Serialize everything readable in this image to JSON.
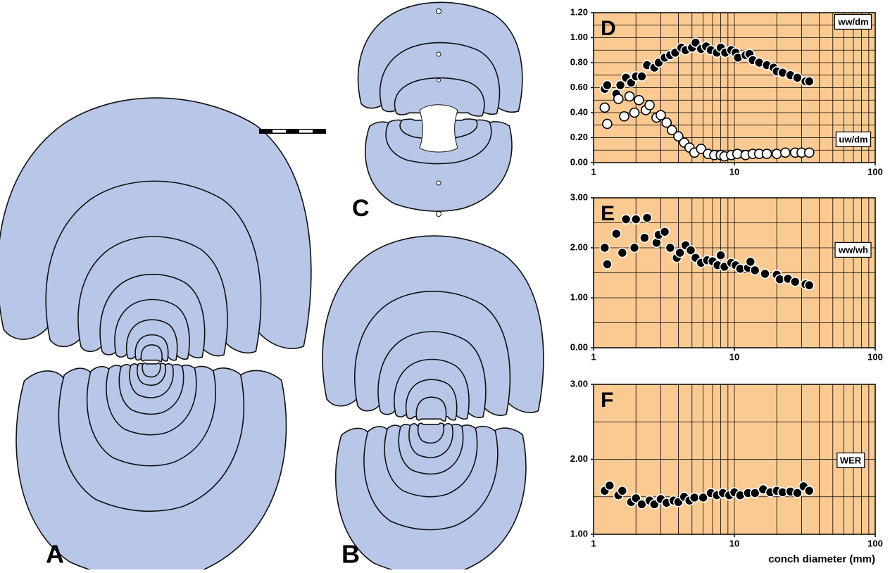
{
  "figure_labels": [
    "A",
    "B",
    "C"
  ],
  "chart_data": [
    {
      "type": "scatter",
      "panel": "D",
      "log_x": true,
      "xlim": [
        1,
        100
      ],
      "xticks": [
        1,
        10,
        100
      ],
      "ylim": [
        0,
        1.2
      ],
      "yticks": [
        {
          "value": 0,
          "label": "0.00"
        },
        {
          "value": 0.2,
          "label": "0.20"
        },
        {
          "value": 0.4,
          "label": "0.40"
        },
        {
          "value": 0.6,
          "label": "0.60"
        },
        {
          "value": 0.8,
          "label": "0.80"
        },
        {
          "value": 1,
          "label": "1.00"
        },
        {
          "value": 1.2,
          "label": "1.20"
        }
      ],
      "xgrid": [
        1,
        2,
        3,
        4,
        5,
        6,
        7,
        8,
        9,
        10,
        20,
        30,
        40,
        50,
        60,
        70,
        80,
        90,
        100
      ],
      "ygrid": [
        0,
        0.1,
        0.2,
        0.3,
        0.4,
        0.5,
        0.6,
        0.7,
        0.8,
        0.9,
        1,
        1.1,
        1.2
      ],
      "background": "#fbca93",
      "series": [
        {
          "name": "ww/dm",
          "color": "#000000",
          "x": [
            1.2,
            1.25,
            1.45,
            1.55,
            1.7,
            1.85,
            2.0,
            2.2,
            2.4,
            2.7,
            2.9,
            3.2,
            3.5,
            3.8,
            4.2,
            4.5,
            5.0,
            5.3,
            5.8,
            6.3,
            6.8,
            7.5,
            8.0,
            8.6,
            9.5,
            10.2,
            10.6,
            12,
            12.8,
            13.5,
            15,
            17,
            19,
            20,
            22,
            25,
            28,
            32,
            34
          ],
          "values": [
            0.59,
            0.62,
            0.55,
            0.62,
            0.68,
            0.64,
            0.69,
            0.69,
            0.78,
            0.76,
            0.8,
            0.84,
            0.86,
            0.88,
            0.92,
            0.9,
            0.92,
            0.96,
            0.91,
            0.93,
            0.9,
            0.88,
            0.92,
            0.88,
            0.9,
            0.88,
            0.84,
            0.86,
            0.87,
            0.82,
            0.8,
            0.78,
            0.76,
            0.73,
            0.72,
            0.7,
            0.68,
            0.65,
            0.65
          ]
        },
        {
          "name": "uw/dm",
          "color": "#ffffff",
          "x": [
            1.2,
            1.25,
            1.5,
            1.65,
            1.8,
            1.95,
            2.1,
            2.35,
            2.5,
            2.8,
            3.0,
            3.3,
            3.6,
            4.0,
            4.4,
            4.8,
            5.2,
            5.8,
            6.5,
            7.2,
            8.0,
            8.5,
            9.5,
            10.5,
            12,
            13.5,
            15,
            17,
            20,
            23,
            27,
            30,
            34
          ],
          "values": [
            0.44,
            0.31,
            0.51,
            0.37,
            0.53,
            0.4,
            0.5,
            0.42,
            0.46,
            0.36,
            0.38,
            0.32,
            0.26,
            0.21,
            0.16,
            0.12,
            0.08,
            0.11,
            0.07,
            0.06,
            0.06,
            0.05,
            0.06,
            0.07,
            0.06,
            0.07,
            0.07,
            0.07,
            0.07,
            0.08,
            0.08,
            0.08,
            0.08
          ]
        }
      ]
    },
    {
      "type": "scatter",
      "panel": "E",
      "log_x": true,
      "xlim": [
        1,
        100
      ],
      "xticks": [
        1,
        10,
        100
      ],
      "ylim": [
        0,
        3
      ],
      "yticks": [
        {
          "value": 0,
          "label": "0.00"
        },
        {
          "value": 1,
          "label": "1.00"
        },
        {
          "value": 2,
          "label": "2.00"
        },
        {
          "value": 3,
          "label": "3.00"
        }
      ],
      "xgrid": [
        1,
        2,
        3,
        4,
        5,
        6,
        7,
        8,
        9,
        10,
        20,
        30,
        40,
        50,
        60,
        70,
        80,
        90,
        100
      ],
      "ygrid": [
        0,
        0.5,
        1,
        1.5,
        2,
        2.5,
        3
      ],
      "background": "#fbca93",
      "series": [
        {
          "name": "ww/wh",
          "color": "#000000",
          "x": [
            1.2,
            1.25,
            1.45,
            1.6,
            1.7,
            1.95,
            2.0,
            2.3,
            2.4,
            2.8,
            2.9,
            3.2,
            3.5,
            3.9,
            4.1,
            4.5,
            4.9,
            5.3,
            5.8,
            6.4,
            7.0,
            7.6,
            8.0,
            8.5,
            9.5,
            10.2,
            11,
            12.5,
            13,
            14,
            16.5,
            20,
            21,
            24,
            27,
            32,
            34
          ],
          "values": [
            2.0,
            1.67,
            2.28,
            1.9,
            2.57,
            2.0,
            2.57,
            2.2,
            2.6,
            2.1,
            2.26,
            2.32,
            2.0,
            1.8,
            1.9,
            2.05,
            1.95,
            1.8,
            1.7,
            1.75,
            1.73,
            1.65,
            1.85,
            1.62,
            1.7,
            1.65,
            1.58,
            1.6,
            1.72,
            1.55,
            1.48,
            1.46,
            1.37,
            1.38,
            1.32,
            1.27,
            1.25
          ]
        }
      ]
    },
    {
      "type": "scatter",
      "panel": "F",
      "log_x": true,
      "x_label": "conch diameter (mm)",
      "xlim": [
        1,
        100
      ],
      "xticks": [
        1,
        10,
        100
      ],
      "ylim": [
        1,
        3
      ],
      "yticks": [
        {
          "value": 1,
          "label": "1.00"
        },
        {
          "value": 2,
          "label": "2.00"
        },
        {
          "value": 3,
          "label": "3.00"
        }
      ],
      "xgrid": [
        1,
        2,
        3,
        4,
        5,
        6,
        7,
        8,
        9,
        10,
        20,
        30,
        40,
        50,
        60,
        70,
        80,
        90,
        100
      ],
      "ygrid": [
        1,
        1.5,
        2,
        2.5,
        3
      ],
      "background": "#fbca93",
      "series": [
        {
          "name": "WER",
          "color": "#000000",
          "x": [
            1.2,
            1.3,
            1.5,
            1.6,
            1.85,
            2.0,
            2.2,
            2.5,
            2.7,
            3.0,
            3.3,
            3.7,
            4.0,
            4.4,
            4.8,
            5.2,
            6.0,
            6.8,
            7.5,
            8.3,
            9.2,
            10,
            11,
            12.5,
            14,
            16,
            18,
            20,
            22,
            25,
            28,
            31,
            34
          ],
          "values": [
            1.58,
            1.65,
            1.52,
            1.58,
            1.43,
            1.48,
            1.4,
            1.45,
            1.4,
            1.47,
            1.42,
            1.45,
            1.43,
            1.5,
            1.45,
            1.49,
            1.49,
            1.55,
            1.52,
            1.55,
            1.52,
            1.56,
            1.52,
            1.55,
            1.55,
            1.6,
            1.56,
            1.58,
            1.56,
            1.57,
            1.55,
            1.64,
            1.58
          ]
        }
      ]
    }
  ]
}
